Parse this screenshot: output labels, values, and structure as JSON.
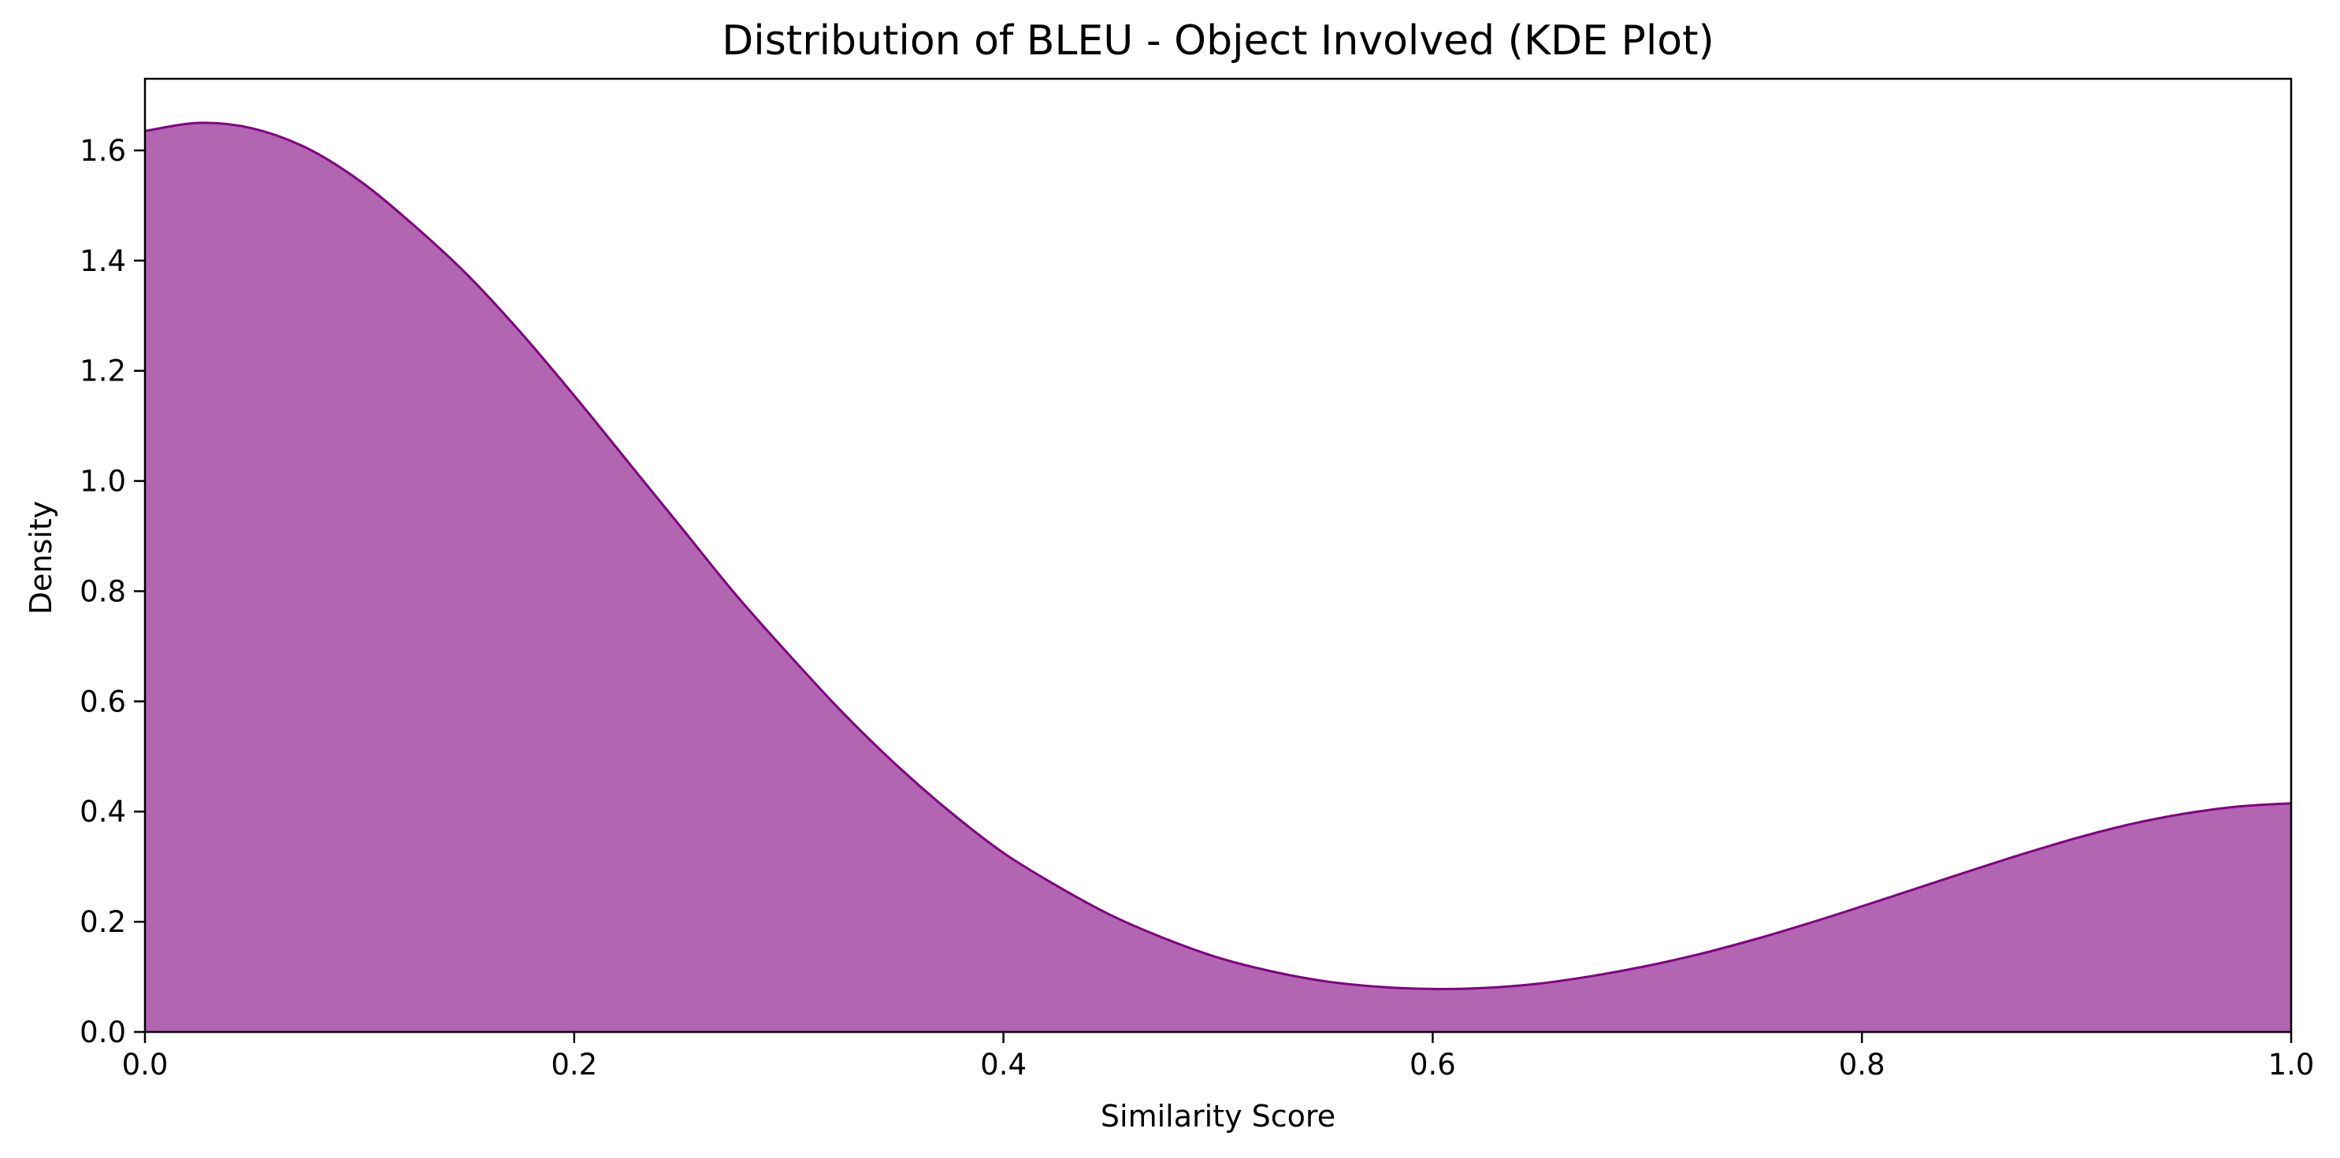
{
  "chart_data": {
    "type": "area",
    "title": "Distribution of BLEU - Object Involved (KDE Plot)",
    "xlabel": "Similarity Score",
    "ylabel": "Density",
    "xlim": [
      0.0,
      1.0
    ],
    "ylim": [
      0.0,
      1.73
    ],
    "grid": false,
    "legend": "none",
    "x_ticks": [
      "0.0",
      "0.2",
      "0.4",
      "0.6",
      "0.8",
      "1.0"
    ],
    "y_ticks": [
      "0.0",
      "0.2",
      "0.4",
      "0.6",
      "0.8",
      "1.0",
      "1.2",
      "1.4",
      "1.6"
    ],
    "series": [
      {
        "fill_color": "#b266b2",
        "line_color": "#800080",
        "x": [
          0.0,
          0.025,
          0.05,
          0.075,
          0.1,
          0.125,
          0.15,
          0.175,
          0.2,
          0.225,
          0.25,
          0.275,
          0.3,
          0.325,
          0.35,
          0.375,
          0.4,
          0.425,
          0.45,
          0.475,
          0.5,
          0.525,
          0.55,
          0.575,
          0.6,
          0.625,
          0.65,
          0.675,
          0.7,
          0.725,
          0.75,
          0.775,
          0.8,
          0.825,
          0.85,
          0.875,
          0.9,
          0.925,
          0.95,
          0.975,
          1.0
        ],
        "y": [
          1.635,
          1.65,
          1.64,
          1.605,
          1.545,
          1.465,
          1.375,
          1.27,
          1.155,
          1.035,
          0.915,
          0.795,
          0.685,
          0.58,
          0.485,
          0.4,
          0.325,
          0.265,
          0.212,
          0.17,
          0.135,
          0.11,
          0.092,
          0.082,
          0.078,
          0.08,
          0.088,
          0.102,
          0.12,
          0.142,
          0.168,
          0.197,
          0.228,
          0.26,
          0.292,
          0.323,
          0.352,
          0.377,
          0.396,
          0.409,
          0.415
        ]
      }
    ]
  }
}
